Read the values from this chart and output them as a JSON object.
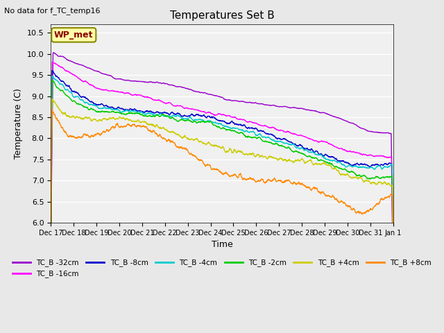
{
  "title": "Temperatures Set B",
  "subtitle": "No data for f_TC_temp16",
  "ylabel": "Temperature (C)",
  "xlabel": "Time",
  "ylim": [
    6.0,
    10.7
  ],
  "annotation_label": "WP_met",
  "background_color": "#e8e8e8",
  "plot_bg_color": "#f0f0f0",
  "series": [
    {
      "name": "TC_B -32cm",
      "color": "#9900cc"
    },
    {
      "name": "TC_B -16cm",
      "color": "#ff00ff"
    },
    {
      "name": "TC_B -8cm",
      "color": "#0000cc"
    },
    {
      "name": "TC_B -4cm",
      "color": "#00cccc"
    },
    {
      "name": "TC_B -2cm",
      "color": "#00cc00"
    },
    {
      "name": "TC_B +4cm",
      "color": "#cccc00"
    },
    {
      "name": "TC_B +8cm",
      "color": "#ff8800"
    }
  ],
  "x_tick_labels": [
    "Dec 17",
    "Dec 18",
    "Dec 19",
    "Dec 20",
    "Dec 21",
    "Dec 22",
    "Dec 23",
    "Dec 24",
    "Dec 25",
    "Dec 26",
    "Dec 27",
    "Dec 28",
    "Dec 29",
    "Dec 30",
    "Dec 31",
    "Jan 1"
  ],
  "n_points": 1500,
  "figsize": [
    6.4,
    4.8
  ],
  "dpi": 100
}
